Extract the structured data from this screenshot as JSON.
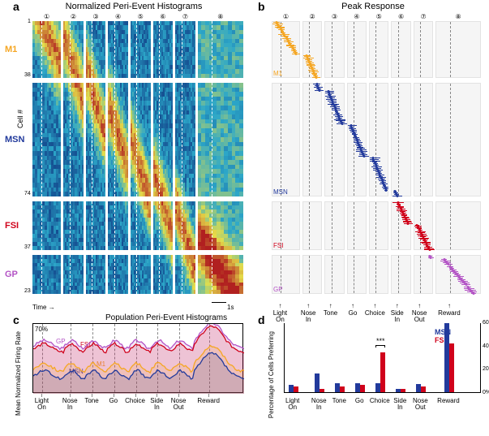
{
  "colors": {
    "m1": "#f5a623",
    "msn": "#223a9c",
    "fsi": "#d0021b",
    "gp": "#b353c5",
    "heatmap_low": "#0b2a7a",
    "heatmap_mid1": "#2ca7c9",
    "heatmap_mid2": "#e6e04a",
    "heatmap_high": "#b12020",
    "panel_bg_b": "#f5f5f5",
    "panel_dash": "#bdbdbd",
    "text": "#000000"
  },
  "panel_a": {
    "label": "a",
    "title": "Normalized Peri-Event Histograms",
    "circled": [
      "①",
      "②",
      "③",
      "④",
      "⑤",
      "⑥",
      "⑦",
      "⑧"
    ],
    "y_label": "Cell #",
    "time_label": "Time",
    "scale": "1s",
    "groups": [
      {
        "name": "M1",
        "count": 38,
        "color": "#f5a623",
        "tick_top": "1",
        "tick_bot": "38"
      },
      {
        "name": "MSN",
        "count": 74,
        "color": "#223a9c",
        "tick_top": "",
        "tick_bot": "74"
      },
      {
        "name": "FSI",
        "count": 37,
        "color": "#d0021b",
        "tick_top": "",
        "tick_bot": "37"
      },
      {
        "name": "GP",
        "count": 23,
        "color": "#b353c5",
        "tick_top": "",
        "tick_bot": "23"
      }
    ],
    "sub_widths": [
      1,
      0.7,
      0.7,
      0.7,
      0.7,
      0.7,
      0.7,
      1.6
    ],
    "event_labels": [
      "Light On",
      "Nose In",
      "Tone",
      "Go",
      "Choice",
      "Side In",
      "Nose Out",
      "Reward"
    ]
  },
  "panel_b": {
    "label": "b",
    "title": "Peak Response",
    "circled": [
      "①",
      "②",
      "③",
      "④",
      "⑤",
      "⑥",
      "⑦",
      "⑧"
    ],
    "groups": [
      "M1",
      "MSN",
      "FSI",
      "GP"
    ],
    "colors": {
      "M1": "#f5a623",
      "MSN": "#223a9c",
      "FSI": "#d0021b",
      "GP": "#b353c5"
    },
    "event_labels": [
      "Light On",
      "Nose In",
      "Tone",
      "Go",
      "Choice",
      "Side In",
      "Nose Out",
      "Reward"
    ]
  },
  "panel_c": {
    "label": "c",
    "title": "Population Peri-Event Histograms",
    "y_label": "Mean Normalized Firing Rate",
    "pct": "70%",
    "traces": [
      {
        "name": "GP",
        "color": "#b353c5",
        "offset": 0.92
      },
      {
        "name": "FSI",
        "color": "#d0021b",
        "offset": 0.85
      },
      {
        "name": "M1",
        "color": "#f5a623",
        "offset": 0.45
      },
      {
        "name": "MSN",
        "color": "#223a9c",
        "offset": 0.3
      }
    ],
    "event_labels": [
      "Light On",
      "Nose In",
      "Tone",
      "Go",
      "Choice",
      "Side In",
      "Nose Out",
      "Reward"
    ]
  },
  "panel_d": {
    "label": "d",
    "y_label": "Percentage of Cells Preferring",
    "legend": [
      "MSN",
      "FSI"
    ],
    "legend_colors": {
      "MSN": "#223a9c",
      "FSI": "#d0021b"
    },
    "y_ticks": [
      "60%",
      "40%",
      "20%",
      "0%"
    ],
    "sig": "***",
    "events": [
      "Light On",
      "Nose In",
      "Tone",
      "Go",
      "Choice",
      "Side In",
      "Nose Out",
      "Reward"
    ],
    "values_msn": [
      6,
      16,
      8,
      8,
      8,
      3,
      7,
      59
    ],
    "values_fsi": [
      5,
      3,
      5,
      6,
      34,
      3,
      5,
      42
    ]
  }
}
